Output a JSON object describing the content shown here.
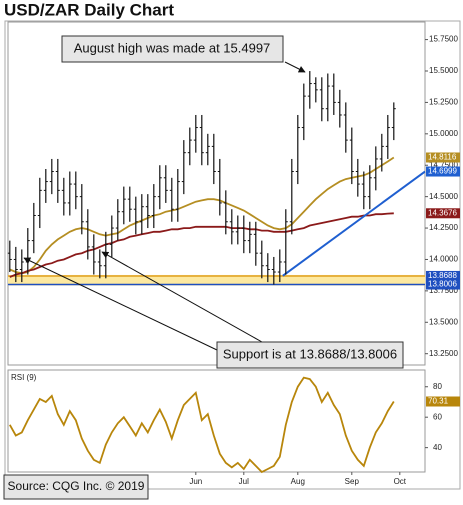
{
  "chart_data": {
    "type": "ohlc",
    "title": "USD/ZAR Daily Chart",
    "annotations": [
      "August high was made at 15.4997",
      "Support is at 13.8688/13.8006"
    ],
    "source": "Source: CQG Inc. © 2019",
    "color": "#111111",
    "xlim": [
      -0.3,
      69.2
    ],
    "xticks": [
      {
        "value": 31,
        "label": "Jun"
      },
      {
        "value": 39,
        "label": "Jul"
      },
      {
        "value": 48,
        "label": "Aug"
      },
      {
        "value": 57,
        "label": "Sep"
      },
      {
        "value": 65,
        "label": "Oct"
      }
    ],
    "ylim": [
      13.16,
      15.89
    ],
    "yticks": [
      {
        "value": 13.25,
        "label": "13.2500"
      },
      {
        "value": 13.5,
        "label": "13.5000"
      },
      {
        "value": 13.75,
        "label": "13.7500"
      },
      {
        "value": 14.0,
        "label": "14.0000"
      },
      {
        "value": 14.25,
        "label": "14.2500"
      },
      {
        "value": 14.5,
        "label": "14.5000"
      },
      {
        "value": 14.75,
        "label": "14.7500"
      },
      {
        "value": 15.0,
        "label": "15.0000"
      },
      {
        "value": 15.25,
        "label": "15.2500"
      },
      {
        "value": 15.5,
        "label": "15.5000"
      },
      {
        "value": 15.75,
        "label": "15.7500"
      }
    ],
    "open": [
      14.05,
      14.0,
      13.92,
      13.98,
      14.15,
      14.35,
      14.55,
      14.62,
      14.7,
      14.55,
      14.45,
      14.6,
      14.5,
      14.3,
      14.1,
      13.98,
      13.95,
      14.12,
      14.25,
      14.38,
      14.48,
      14.4,
      14.3,
      14.42,
      14.35,
      14.5,
      14.65,
      14.55,
      14.4,
      14.62,
      14.85,
      14.95,
      15.05,
      14.85,
      14.9,
      14.7,
      14.45,
      14.3,
      14.22,
      14.25,
      14.15,
      14.2,
      14.05,
      13.95,
      13.92,
      13.9,
      13.98,
      14.3,
      14.7,
      15.05,
      15.3,
      15.4,
      15.35,
      15.2,
      15.38,
      15.25,
      15.15,
      14.95,
      14.7,
      14.6,
      14.5,
      14.65,
      14.8,
      14.9,
      15.05
    ],
    "high": [
      14.15,
      14.1,
      14.08,
      14.25,
      14.45,
      14.65,
      14.72,
      14.8,
      14.8,
      14.65,
      14.7,
      14.7,
      14.6,
      14.4,
      14.2,
      14.08,
      14.22,
      14.35,
      14.48,
      14.58,
      14.58,
      14.5,
      14.52,
      14.52,
      14.6,
      14.75,
      14.75,
      14.65,
      14.72,
      14.95,
      15.05,
      15.15,
      15.15,
      15.0,
      15.0,
      14.8,
      14.55,
      14.4,
      14.35,
      14.35,
      14.3,
      14.3,
      14.15,
      14.05,
      14.02,
      14.08,
      14.4,
      14.8,
      15.15,
      15.4,
      15.4997,
      15.45,
      15.45,
      15.48,
      15.48,
      15.35,
      15.25,
      15.05,
      14.8,
      14.7,
      14.75,
      14.9,
      15.0,
      15.15,
      15.25
    ],
    "low": [
      13.9,
      13.82,
      13.82,
      13.88,
      14.05,
      14.25,
      14.45,
      14.52,
      14.45,
      14.35,
      14.35,
      14.4,
      14.2,
      14.0,
      13.88,
      13.85,
      13.85,
      14.02,
      14.15,
      14.28,
      14.3,
      14.2,
      14.2,
      14.25,
      14.25,
      14.4,
      14.45,
      14.3,
      14.3,
      14.52,
      14.75,
      14.85,
      14.75,
      14.75,
      14.6,
      14.35,
      14.2,
      14.12,
      14.12,
      14.05,
      14.05,
      13.95,
      13.85,
      13.82,
      13.8,
      13.82,
      13.88,
      14.2,
      14.6,
      14.95,
      15.2,
      15.25,
      15.1,
      15.1,
      15.15,
      15.05,
      14.85,
      14.6,
      14.5,
      14.4,
      14.4,
      14.55,
      14.7,
      14.8,
      14.95
    ],
    "close": [
      14.0,
      13.92,
      13.98,
      14.15,
      14.35,
      14.55,
      14.62,
      14.7,
      14.55,
      14.45,
      14.6,
      14.5,
      14.3,
      14.1,
      13.98,
      13.95,
      14.12,
      14.25,
      14.38,
      14.48,
      14.4,
      14.3,
      14.42,
      14.35,
      14.5,
      14.65,
      14.55,
      14.4,
      14.62,
      14.85,
      14.95,
      15.05,
      14.85,
      14.9,
      14.7,
      14.45,
      14.3,
      14.22,
      14.25,
      14.15,
      14.2,
      14.05,
      13.95,
      13.92,
      13.9,
      13.98,
      14.3,
      14.7,
      15.05,
      15.3,
      15.4,
      15.35,
      15.2,
      15.38,
      15.25,
      15.15,
      14.95,
      14.7,
      14.6,
      14.5,
      14.65,
      14.8,
      14.9,
      15.05,
      15.2
    ],
    "lines": [
      {
        "color": "#b58e22",
        "values": [
          13.92,
          13.9,
          13.89,
          13.9,
          13.94,
          14.0,
          14.07,
          14.12,
          14.16,
          14.19,
          14.22,
          14.24,
          14.25,
          14.24,
          14.22,
          14.2,
          14.19,
          14.2,
          14.21,
          14.24,
          14.27,
          14.29,
          14.31,
          14.33,
          14.35,
          14.36,
          14.38,
          14.39,
          14.4,
          14.42,
          14.44,
          14.46,
          14.47,
          14.48,
          14.48,
          14.47,
          14.45,
          14.43,
          14.41,
          14.39,
          14.36,
          14.33,
          14.3,
          14.27,
          14.25,
          14.24,
          14.25,
          14.28,
          14.33,
          14.38,
          14.43,
          14.48,
          14.52,
          14.56,
          14.59,
          14.62,
          14.64,
          14.65,
          14.66,
          14.67,
          14.69,
          14.72,
          14.75,
          14.78,
          14.8116
        ]
      },
      {
        "color": "#8b1a1a",
        "values": [
          13.86,
          13.88,
          13.89,
          13.91,
          13.92,
          13.94,
          13.96,
          13.97,
          13.99,
          14.0,
          14.02,
          14.04,
          14.05,
          14.07,
          14.08,
          14.1,
          14.12,
          14.13,
          14.15,
          14.16,
          14.18,
          14.19,
          14.2,
          14.21,
          14.22,
          14.22,
          14.23,
          14.24,
          14.24,
          14.25,
          14.25,
          14.26,
          14.26,
          14.26,
          14.26,
          14.26,
          14.26,
          14.25,
          14.25,
          14.25,
          14.24,
          14.24,
          14.23,
          14.23,
          14.22,
          14.22,
          14.22,
          14.23,
          14.24,
          14.25,
          14.27,
          14.28,
          14.29,
          14.3,
          14.31,
          14.32,
          14.33,
          14.34,
          14.34,
          14.35,
          14.35,
          14.36,
          14.36,
          14.365,
          14.3676
        ]
      }
    ],
    "trendline": {
      "color": "#1f5fd0",
      "x": [
        45.5,
        69.2
      ],
      "y": [
        13.87,
        14.6999
      ]
    },
    "support": {
      "levels": [
        13.8688,
        13.8006
      ],
      "colors": [
        "#e0a020",
        "#1f4fc0"
      ],
      "tag_colors": [
        "#1f4fc0",
        "#1f4fc0"
      ],
      "band_color": "#fde9a0"
    },
    "rsi": {
      "label": "RSI (9)",
      "color": "#b8860b",
      "ylim": [
        24,
        91
      ],
      "yticks": [
        80,
        60,
        40
      ],
      "values": [
        55,
        48,
        50,
        58,
        65,
        72,
        70,
        74,
        62,
        55,
        64,
        58,
        46,
        38,
        32,
        30,
        42,
        50,
        56,
        60,
        54,
        48,
        56,
        50,
        58,
        65,
        57,
        46,
        58,
        68,
        72,
        76,
        58,
        62,
        48,
        36,
        30,
        27,
        30,
        26,
        32,
        28,
        24,
        26,
        28,
        34,
        55,
        70,
        80,
        86,
        85,
        80,
        70,
        76,
        68,
        62,
        48,
        38,
        32,
        28,
        40,
        50,
        56,
        64,
        70.31
      ]
    }
  }
}
